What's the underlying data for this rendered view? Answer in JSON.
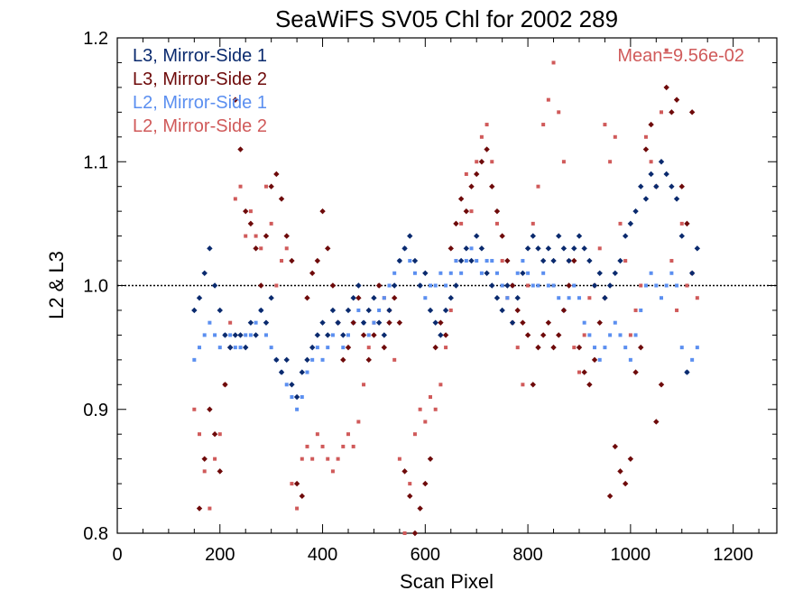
{
  "chart_data": {
    "type": "scatter",
    "title": "SeaWiFS SV05 Chl for 2002 289",
    "xlabel": "Scan Pixel",
    "ylabel": "L2 & L3",
    "xlim": [
      0,
      1285
    ],
    "ylim": [
      0.8,
      1.2
    ],
    "xticks": [
      0,
      200,
      400,
      600,
      800,
      1000,
      1200
    ],
    "xtick_labels": [
      "0",
      "200",
      "400",
      "600",
      "800",
      "1000",
      "1200"
    ],
    "yticks": [
      0.8,
      0.9,
      1.0,
      1.1,
      1.2
    ],
    "ytick_labels": [
      "0.8",
      "0.9",
      "1.0",
      "1.1",
      "1.2"
    ],
    "reference_line": {
      "y": 1.0,
      "style": "dotted"
    },
    "annotation": "Mean=9.56e-02",
    "annotation_color": "#d05a5a",
    "legend_position": "top-left",
    "series": [
      {
        "name": "L3, Mirror-Side 1",
        "color": "#0a2a6e",
        "marker": "diamond",
        "x": [
          150,
          160,
          170,
          180,
          190,
          200,
          210,
          220,
          230,
          240,
          250,
          260,
          270,
          280,
          290,
          300,
          310,
          320,
          330,
          340,
          350,
          360,
          370,
          380,
          390,
          400,
          410,
          420,
          430,
          440,
          450,
          460,
          470,
          480,
          490,
          500,
          510,
          520,
          530,
          540,
          550,
          560,
          570,
          580,
          590,
          600,
          610,
          620,
          630,
          640,
          650,
          660,
          670,
          680,
          690,
          700,
          710,
          720,
          730,
          740,
          750,
          760,
          770,
          780,
          790,
          800,
          810,
          820,
          830,
          840,
          850,
          860,
          870,
          880,
          890,
          900,
          910,
          920,
          930,
          940,
          950,
          960,
          970,
          980,
          990,
          1000,
          1010,
          1020,
          1030,
          1040,
          1050,
          1060,
          1070,
          1080,
          1090,
          1100,
          1110,
          1120,
          1130
        ],
        "y": [
          0.98,
          0.99,
          1.01,
          1.03,
          1.0,
          0.98,
          0.96,
          0.95,
          0.96,
          0.96,
          0.95,
          0.97,
          0.96,
          0.98,
          0.97,
          0.99,
          0.94,
          0.93,
          0.94,
          0.92,
          0.91,
          0.93,
          0.94,
          0.95,
          0.96,
          0.97,
          0.96,
          0.98,
          0.97,
          0.96,
          0.98,
          0.99,
          1.0,
          0.97,
          0.98,
          0.99,
          0.97,
          0.96,
          0.98,
          1.0,
          1.02,
          1.03,
          1.04,
          1.02,
          1.0,
          1.01,
          0.98,
          0.97,
          0.96,
          0.98,
          0.99,
          1.0,
          1.02,
          1.03,
          1.02,
          1.04,
          1.03,
          1.01,
          1.0,
          0.99,
          0.98,
          1.0,
          0.97,
          0.99,
          1.01,
          1.03,
          1.04,
          1.03,
          1.02,
          1.03,
          1.02,
          1.04,
          1.03,
          1.02,
          1.03,
          1.04,
          1.03,
          1.02,
          1.0,
          1.01,
          0.99,
          1.0,
          1.01,
          1.02,
          1.04,
          1.05,
          1.06,
          1.08,
          1.07,
          1.09,
          1.08,
          1.1,
          1.09,
          1.08,
          1.07,
          1.04,
          0.93,
          1.01,
          1.03
        ]
      },
      {
        "name": "L3, Mirror-Side 2",
        "color": "#6e0a0a",
        "marker": "diamond",
        "x": [
          160,
          170,
          180,
          190,
          200,
          210,
          220,
          230,
          240,
          250,
          260,
          270,
          280,
          290,
          300,
          310,
          320,
          330,
          340,
          350,
          360,
          370,
          380,
          390,
          400,
          410,
          420,
          430,
          440,
          450,
          460,
          470,
          480,
          490,
          500,
          510,
          520,
          530,
          540,
          550,
          560,
          570,
          580,
          590,
          600,
          610,
          620,
          630,
          640,
          650,
          660,
          670,
          680,
          690,
          700,
          710,
          720,
          730,
          740,
          750,
          760,
          770,
          780,
          790,
          800,
          810,
          820,
          830,
          840,
          850,
          860,
          870,
          880,
          890,
          900,
          910,
          920,
          930,
          940,
          950,
          960,
          970,
          980,
          990,
          1000,
          1010,
          1020,
          1030,
          1040,
          1050,
          1060,
          1070,
          1080,
          1090,
          1100,
          1110,
          1120
        ],
        "y": [
          0.82,
          0.86,
          0.9,
          0.88,
          0.85,
          0.92,
          0.95,
          1.15,
          1.11,
          1.06,
          1.05,
          1.03,
          1.0,
          1.04,
          1.08,
          1.09,
          1.07,
          1.04,
          1.02,
          0.84,
          0.83,
          0.99,
          1.01,
          1.02,
          1.06,
          1.03,
          1.0,
          0.97,
          0.94,
          0.95,
          0.97,
          0.99,
          0.96,
          0.94,
          0.96,
          1.0,
          0.95,
          0.97,
          0.99,
          0.97,
          0.85,
          0.83,
          0.8,
          0.82,
          0.84,
          0.86,
          0.95,
          0.97,
          0.96,
          1.03,
          1.05,
          1.07,
          1.06,
          1.08,
          1.09,
          1.1,
          1.11,
          1.08,
          1.06,
          1.04,
          1.02,
          1.0,
          0.98,
          0.97,
          0.96,
          0.92,
          0.95,
          0.96,
          0.97,
          0.95,
          0.96,
          0.98,
          1.0,
          1.02,
          0.95,
          0.93,
          0.92,
          0.94,
          0.97,
          0.99,
          0.83,
          0.87,
          0.85,
          0.84,
          0.86,
          0.93,
          0.95,
          1.11,
          1.13,
          0.89,
          0.92,
          1.16,
          1.14,
          1.15,
          1.08,
          1.05,
          1.14
        ]
      },
      {
        "name": "L2, Mirror-Side 1",
        "color": "#5b8ff0",
        "marker": "circle",
        "x": [
          150,
          160,
          170,
          180,
          190,
          200,
          210,
          220,
          230,
          240,
          250,
          260,
          270,
          280,
          290,
          300,
          310,
          320,
          330,
          340,
          350,
          360,
          370,
          380,
          390,
          400,
          410,
          420,
          430,
          440,
          450,
          460,
          470,
          480,
          490,
          500,
          510,
          520,
          530,
          540,
          550,
          560,
          570,
          580,
          590,
          600,
          610,
          620,
          630,
          640,
          650,
          660,
          670,
          680,
          690,
          700,
          710,
          720,
          730,
          740,
          750,
          760,
          770,
          780,
          790,
          800,
          810,
          820,
          830,
          840,
          850,
          860,
          870,
          880,
          890,
          900,
          910,
          920,
          930,
          940,
          950,
          960,
          970,
          980,
          990,
          1000,
          1010,
          1020,
          1030,
          1040,
          1050,
          1060,
          1070,
          1080,
          1090,
          1100,
          1110,
          1120,
          1130
        ],
        "y": [
          0.94,
          0.95,
          0.96,
          0.97,
          0.96,
          0.95,
          0.96,
          0.96,
          0.95,
          0.95,
          0.96,
          0.96,
          0.97,
          0.98,
          0.96,
          0.95,
          0.94,
          0.93,
          0.92,
          0.91,
          0.9,
          0.91,
          0.93,
          0.94,
          0.95,
          0.94,
          0.95,
          0.96,
          0.97,
          0.95,
          0.96,
          0.97,
          0.98,
          0.97,
          0.96,
          0.97,
          0.98,
          0.99,
          1.0,
          1.01,
          1.02,
          1.03,
          1.02,
          1.01,
          1.0,
          0.99,
          1.0,
          1.0,
          1.01,
          1.0,
          1.01,
          1.02,
          1.01,
          1.02,
          1.03,
          1.02,
          1.01,
          1.02,
          1.02,
          1.01,
          1.0,
          0.99,
          1.0,
          1.01,
          1.02,
          1.01,
          1.0,
          1.0,
          1.01,
          1.0,
          1.0,
          0.99,
          0.98,
          0.99,
          1.0,
          0.99,
          0.97,
          0.96,
          0.95,
          0.94,
          0.95,
          0.96,
          0.97,
          0.96,
          0.95,
          0.94,
          0.96,
          0.98,
          1.0,
          1.01,
          1.0,
          0.99,
          1.0,
          1.01,
          1.0,
          0.95,
          0.93,
          0.94,
          0.95
        ]
      },
      {
        "name": "L2, Mirror-Side 2",
        "color": "#d05a5a",
        "marker": "circle",
        "x": [
          150,
          160,
          170,
          180,
          190,
          200,
          210,
          220,
          230,
          240,
          250,
          260,
          270,
          280,
          290,
          300,
          310,
          320,
          330,
          340,
          350,
          360,
          370,
          380,
          390,
          400,
          410,
          420,
          430,
          440,
          450,
          460,
          470,
          480,
          490,
          500,
          510,
          520,
          530,
          540,
          550,
          560,
          570,
          580,
          590,
          600,
          610,
          620,
          630,
          640,
          650,
          660,
          670,
          680,
          690,
          700,
          710,
          720,
          730,
          740,
          750,
          760,
          770,
          780,
          790,
          800,
          810,
          820,
          830,
          840,
          850,
          860,
          870,
          880,
          890,
          900,
          910,
          920,
          930,
          940,
          950,
          960,
          970,
          980,
          990,
          1000,
          1010,
          1020,
          1030,
          1040,
          1050,
          1060,
          1070,
          1080,
          1090,
          1100,
          1110,
          1120,
          1130
        ],
        "y": [
          0.9,
          0.88,
          0.85,
          0.82,
          0.86,
          0.88,
          0.92,
          0.97,
          1.07,
          1.08,
          1.04,
          1.06,
          1.04,
          1.03,
          1.08,
          1.05,
          1.0,
          1.02,
          1.03,
          0.84,
          0.82,
          0.86,
          0.87,
          0.86,
          0.88,
          0.87,
          0.86,
          0.85,
          0.86,
          0.87,
          0.88,
          0.87,
          0.89,
          0.92,
          0.95,
          0.97,
          1.0,
          0.99,
          0.98,
          0.94,
          0.86,
          0.8,
          0.84,
          0.88,
          0.9,
          0.89,
          0.91,
          0.9,
          0.92,
          0.95,
          0.98,
          1.02,
          1.05,
          1.09,
          1.06,
          1.1,
          1.12,
          1.13,
          1.1,
          1.05,
          1.02,
          0.99,
          0.97,
          0.95,
          0.92,
          1.0,
          1.05,
          1.08,
          1.13,
          1.15,
          1.18,
          1.14,
          1.1,
          1.02,
          0.95,
          0.93,
          0.96,
          0.99,
          1.0,
          1.03,
          1.13,
          1.1,
          1.12,
          1.05,
          1.02,
          0.96,
          0.98,
          1.0,
          1.12,
          1.1,
          1.08,
          1.14,
          1.19,
          1.02,
          0.98,
          1.05,
          1.0,
          1.01,
          0.99
        ]
      }
    ]
  }
}
